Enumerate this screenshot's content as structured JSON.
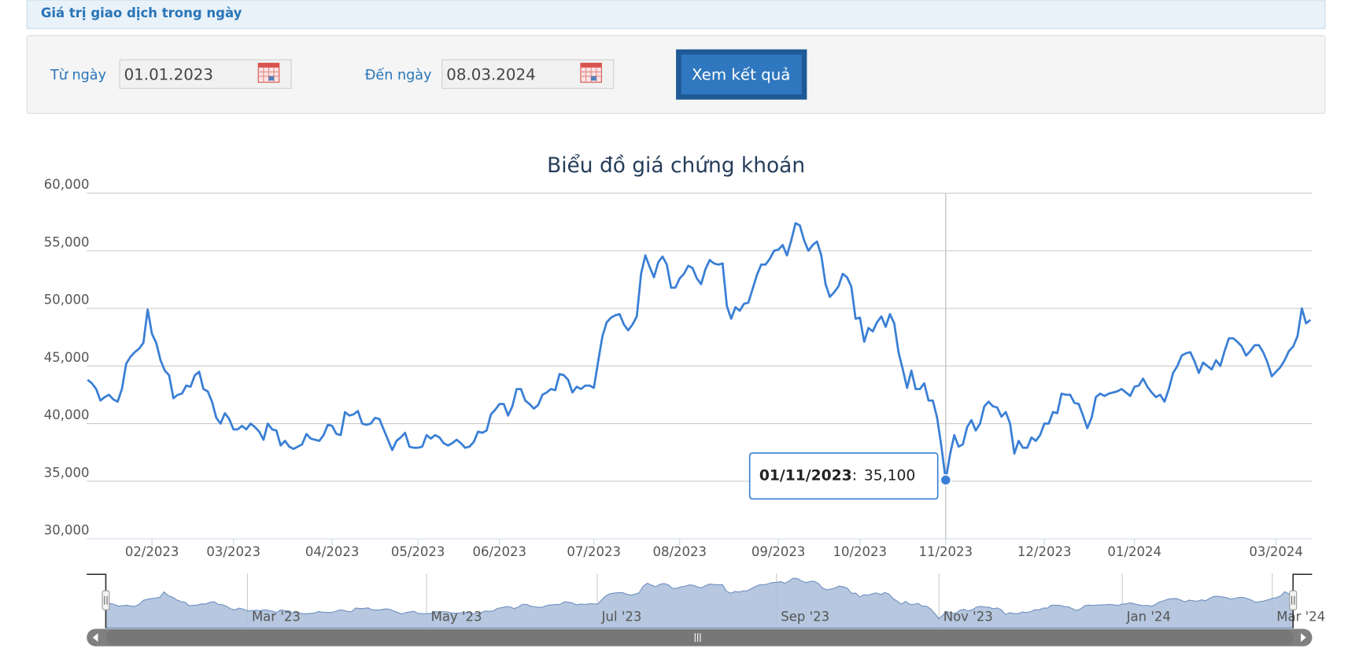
{
  "header": {
    "title": "Giá trị giao dịch trong ngày"
  },
  "form": {
    "from_label": "Từ ngày",
    "from_value": "01.01.2023",
    "to_label": "Đến ngày",
    "to_value": "08.03.2024",
    "submit": "Xem kết quả"
  },
  "chart_data": {
    "type": "line",
    "title": "Biểu đồ giá chứng khoán",
    "series": [
      {
        "color": "#3a7fd5",
        "values": [
          43800,
          43500,
          43000,
          42000,
          42300,
          42500,
          42100,
          41900,
          43000,
          45200,
          45800,
          46200,
          46500,
          47000,
          49900,
          47800,
          47000,
          45500,
          44600,
          44200,
          42200,
          42500,
          42600,
          43300,
          43200,
          44200,
          44500,
          43000,
          42800,
          41900,
          40500,
          40000,
          40900,
          40400,
          39500,
          39500,
          39800,
          39500,
          40000,
          39700,
          39300,
          38600,
          40000,
          39500,
          39400,
          38100,
          38500,
          38000,
          37800,
          38000,
          38200,
          39100,
          38700,
          38600,
          38500,
          39000,
          39900,
          39800,
          39100,
          39000,
          41000,
          40700,
          40800,
          41100,
          40000,
          39900,
          40000,
          40500,
          40400,
          39500,
          38600,
          37700,
          38500,
          38800,
          39200,
          38000,
          37900,
          37900,
          38000,
          39000,
          38700,
          39000,
          38800,
          38300,
          38100,
          38300,
          38600,
          38300,
          37900,
          38000,
          38400,
          39300,
          39200,
          39400,
          40800,
          41200,
          41700,
          41700,
          40700,
          41500,
          43000,
          43000,
          42000,
          41700,
          41300,
          41600,
          42500,
          42700,
          43000,
          42900,
          44300,
          44200,
          43800,
          42700,
          43200,
          43000,
          43300,
          43300,
          43100,
          45400,
          47600,
          48800,
          49200,
          49400,
          49500,
          48600,
          48100,
          48600,
          49300,
          53000,
          54600,
          53600,
          52700,
          54000,
          54500,
          53800,
          51800,
          51800,
          52600,
          53000,
          53700,
          53500,
          52600,
          52100,
          53400,
          54200,
          53900,
          53800,
          53900,
          50200,
          49100,
          50100,
          49800,
          50400,
          50500,
          51700,
          52900,
          53800,
          53800,
          54300,
          55000,
          55100,
          55500,
          54600,
          55900,
          57400,
          57200,
          55900,
          55000,
          55500,
          55800,
          54600,
          52100,
          51000,
          51400,
          51900,
          53000,
          52700,
          51900,
          49100,
          49200,
          47100,
          48300,
          48000,
          48800,
          49300,
          48400,
          49500,
          48700,
          46200,
          44700,
          43100,
          44600,
          43000,
          43000,
          43500,
          42000,
          42000,
          40500,
          38000,
          35100,
          37300,
          39000,
          38000,
          38200,
          39700,
          40300,
          39400,
          40000,
          41500,
          41900,
          41500,
          41400,
          40600,
          41000,
          40000,
          37400,
          38500,
          37900,
          37900,
          38800,
          38500,
          39000,
          40000,
          40000,
          41000,
          40900,
          42600,
          42500,
          42500,
          41800,
          41700,
          40700,
          39600,
          40500,
          42300,
          42600,
          42400,
          42600,
          42700,
          42800,
          43000,
          42700,
          42400,
          43200,
          43300,
          43900,
          43200,
          42700,
          42300,
          42500,
          41900,
          43000,
          44400,
          45000,
          45900,
          46100,
          46200,
          45400,
          44400,
          45300,
          45000,
          44700,
          45500,
          45000,
          46300,
          47400,
          47400,
          47100,
          46700,
          45900,
          46300,
          46800,
          46800,
          46200,
          45300,
          44100,
          44500,
          44900,
          45500,
          46300,
          46700,
          47600,
          50000,
          48700,
          49000
        ]
      }
    ],
    "xlim": [
      0,
      285
    ],
    "xticks": [
      {
        "value": 15,
        "label": "02/2023"
      },
      {
        "value": 34,
        "label": "03/2023"
      },
      {
        "value": 57,
        "label": "04/2023"
      },
      {
        "value": 77,
        "label": "05/2023"
      },
      {
        "value": 96,
        "label": "06/2023"
      },
      {
        "value": 118,
        "label": "07/2023"
      },
      {
        "value": 138,
        "label": "08/2023"
      },
      {
        "value": 161,
        "label": "09/2023"
      },
      {
        "value": 180,
        "label": "10/2023"
      },
      {
        "value": 200,
        "label": "11/2023"
      },
      {
        "value": 223,
        "label": "12/2023"
      },
      {
        "value": 244,
        "label": "01/2024"
      },
      {
        "value": 277,
        "label": "03/2024"
      }
    ],
    "ylim": [
      30000,
      60000
    ],
    "yticks": [
      {
        "value": 30000,
        "label": "30,000"
      },
      {
        "value": 35000,
        "label": "35,000"
      },
      {
        "value": 40000,
        "label": "40,000"
      },
      {
        "value": 45000,
        "label": "45,000"
      },
      {
        "value": 50000,
        "label": "50,000"
      },
      {
        "value": 55000,
        "label": "55,000"
      },
      {
        "value": 60000,
        "label": "60,000"
      }
    ],
    "grid": true,
    "tooltip": {
      "date": "01/11/2023",
      "separator": ":",
      "value": 35100,
      "value_label": "35,100"
    },
    "navigator": {
      "color": "#aec1dc",
      "xticks": [
        {
          "value": 34,
          "label": "Mar '23"
        },
        {
          "value": 77,
          "label": "May '23"
        },
        {
          "value": 118,
          "label": "Jul '23"
        },
        {
          "value": 161,
          "label": "Sep '23"
        },
        {
          "value": 200,
          "label": "Nov '23"
        },
        {
          "value": 244,
          "label": "Jan '24"
        },
        {
          "value": 280,
          "label": "Mar '24"
        }
      ]
    }
  }
}
